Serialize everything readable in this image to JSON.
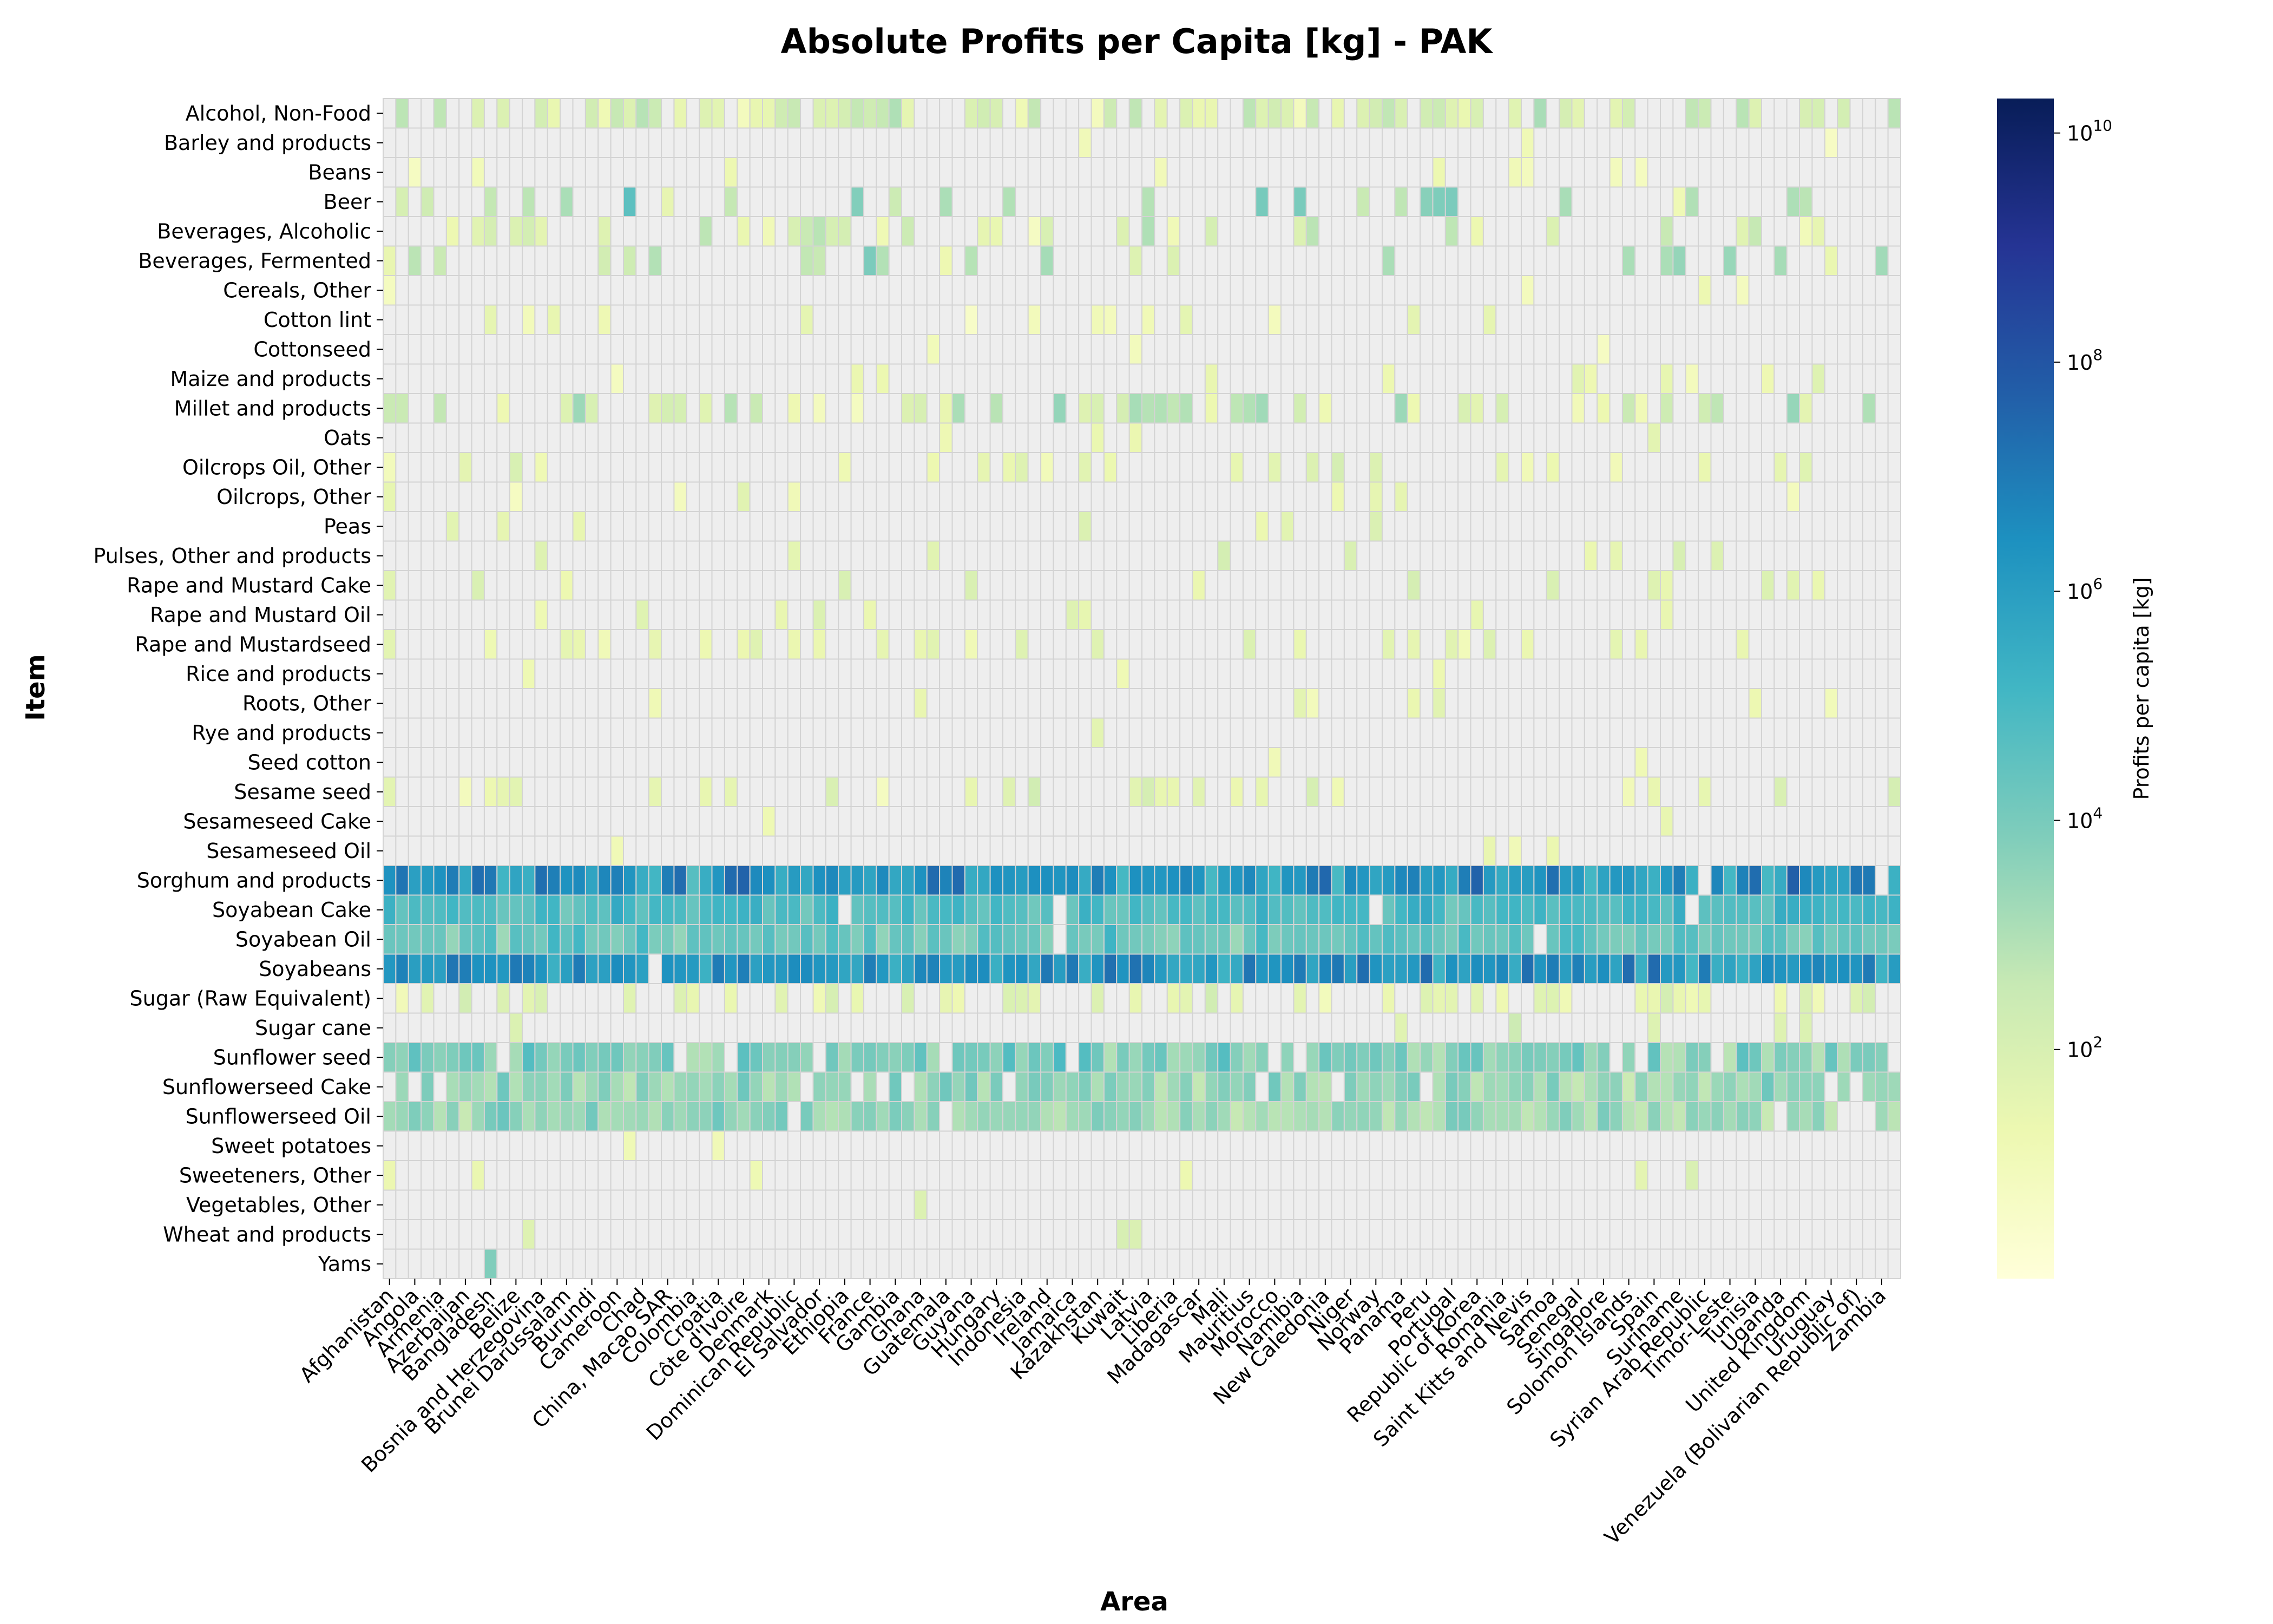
{
  "chart_data": {
    "type": "heatmap",
    "title": "Absolute Profits per Capita [kg] - PAK",
    "xlabel": "Area",
    "ylabel": "Item",
    "colorbar": {
      "label": "Profits per capita [kg]",
      "scale": "log",
      "range": [
        1,
        20000000000
      ],
      "ticks": [
        {
          "label": "10",
          "exp": "10",
          "value": 10000000000
        },
        {
          "label": "10",
          "exp": "8",
          "value": 100000000
        },
        {
          "label": "10",
          "exp": "6",
          "value": 1000000
        },
        {
          "label": "10",
          "exp": "4",
          "value": 10000
        },
        {
          "label": "10",
          "exp": "2",
          "value": 100
        }
      ],
      "colormap": "YlGnBu"
    },
    "missing_color": "#eeeeee",
    "grid_color": "#d3d3d3",
    "y_categories": [
      "Alcohol, Non-Food",
      "Barley and products",
      "Beans",
      "Beer",
      "Beverages, Alcoholic",
      "Beverages, Fermented",
      "Cereals, Other",
      "Cotton lint",
      "Cottonseed",
      "Maize and products",
      "Millet and products",
      "Oats",
      "Oilcrops Oil, Other",
      "Oilcrops, Other",
      "Peas",
      "Pulses, Other and products",
      "Rape and Mustard Cake",
      "Rape and Mustard Oil",
      "Rape and Mustardseed",
      "Rice and products",
      "Roots, Other",
      "Rye and products",
      "Seed cotton",
      "Sesame seed",
      "Sesameseed Cake",
      "Sesameseed Oil",
      "Sorghum and products",
      "Soyabean Cake",
      "Soyabean Oil",
      "Soyabeans",
      "Sugar (Raw Equivalent)",
      "Sugar cane",
      "Sunflower seed",
      "Sunflowerseed Cake",
      "Sunflowerseed Oil",
      "Sweet potatoes",
      "Sweeteners, Other",
      "Vegetables, Other",
      "Wheat and products",
      "Yams"
    ],
    "x_tick_labels": [
      "Afghanistan",
      "Angola",
      "Armenia",
      "Azerbaijan",
      "Bangladesh",
      "Belize",
      "Bosnia and Herzegovina",
      "Brunei Darussalam",
      "Burundi",
      "Cameroon",
      "Chad",
      "China, Macao SAR",
      "Colombia",
      "Croatia",
      "Côte d'Ivoire",
      "Denmark",
      "Dominican Republic",
      "El Salvador",
      "Ethiopia",
      "France",
      "Gambia",
      "Ghana",
      "Guatemala",
      "Guyana",
      "Hungary",
      "Indonesia",
      "Ireland",
      "Jamaica",
      "Kazakhstan",
      "Kuwait",
      "Latvia",
      "Liberia",
      "Madagascar",
      "Mali",
      "Mauritius",
      "Morocco",
      "Namibia",
      "New Caledonia",
      "Niger",
      "Norway",
      "Panama",
      "Peru",
      "Portugal",
      "Republic of Korea",
      "Romania",
      "Saint Kitts and Nevis",
      "Samoa",
      "Senegal",
      "Singapore",
      "Solomon Islands",
      "Spain",
      "Suriname",
      "Syrian Arab Republic",
      "Timor-Leste",
      "Tunisia",
      "Uganda",
      "United Kingdom",
      "Uruguay",
      "Venezuela (Bolivarian Republic of)",
      "Zambia"
    ],
    "n_columns": 120,
    "row_profiles": [
      {
        "density": 0.55,
        "mean_log10": 1.9,
        "spread": 1.4
      },
      {
        "density": 0.03,
        "mean_log10": 1.0,
        "spread": 0.5
      },
      {
        "density": 0.05,
        "mean_log10": 1.0,
        "spread": 0.6
      },
      {
        "density": 0.25,
        "mean_log10": 2.8,
        "spread": 2.0
      },
      {
        "density": 0.2,
        "mean_log10": 2.0,
        "spread": 1.4
      },
      {
        "density": 0.2,
        "mean_log10": 2.6,
        "spread": 1.8
      },
      {
        "density": 0.03,
        "mean_log10": 1.0,
        "spread": 0.5
      },
      {
        "density": 0.08,
        "mean_log10": 1.1,
        "spread": 0.6
      },
      {
        "density": 0.02,
        "mean_log10": 1.0,
        "spread": 0.5
      },
      {
        "density": 0.08,
        "mean_log10": 1.3,
        "spread": 0.6
      },
      {
        "density": 0.45,
        "mean_log10": 2.2,
        "spread": 1.6
      },
      {
        "density": 0.04,
        "mean_log10": 1.3,
        "spread": 0.6
      },
      {
        "density": 0.18,
        "mean_log10": 1.5,
        "spread": 0.8
      },
      {
        "density": 0.07,
        "mean_log10": 1.2,
        "spread": 0.6
      },
      {
        "density": 0.06,
        "mean_log10": 1.6,
        "spread": 0.6
      },
      {
        "density": 0.1,
        "mean_log10": 1.6,
        "spread": 0.7
      },
      {
        "density": 0.1,
        "mean_log10": 1.5,
        "spread": 0.7
      },
      {
        "density": 0.09,
        "mean_log10": 1.5,
        "spread": 0.7
      },
      {
        "density": 0.25,
        "mean_log10": 1.5,
        "spread": 0.8
      },
      {
        "density": 0.02,
        "mean_log10": 1.3,
        "spread": 0.5
      },
      {
        "density": 0.1,
        "mean_log10": 1.3,
        "spread": 0.6
      },
      {
        "density": 0.01,
        "mean_log10": 1.5,
        "spread": 0.4
      },
      {
        "density": 0.01,
        "mean_log10": 1.3,
        "spread": 0.4
      },
      {
        "density": 0.25,
        "mean_log10": 1.5,
        "spread": 0.8
      },
      {
        "density": 0.02,
        "mean_log10": 1.3,
        "spread": 0.5
      },
      {
        "density": 0.02,
        "mean_log10": 1.3,
        "spread": 0.5
      },
      {
        "density": 0.97,
        "mean_log10": 6.2,
        "spread": 1.6
      },
      {
        "density": 0.96,
        "mean_log10": 4.9,
        "spread": 1.0
      },
      {
        "density": 0.96,
        "mean_log10": 4.3,
        "spread": 1.0
      },
      {
        "density": 0.97,
        "mean_log10": 6.3,
        "spread": 1.3
      },
      {
        "density": 0.35,
        "mean_log10": 1.6,
        "spread": 0.8
      },
      {
        "density": 0.02,
        "mean_log10": 2.0,
        "spread": 0.5
      },
      {
        "density": 0.92,
        "mean_log10": 3.8,
        "spread": 1.2
      },
      {
        "density": 0.92,
        "mean_log10": 3.4,
        "spread": 1.0
      },
      {
        "density": 0.92,
        "mean_log10": 3.4,
        "spread": 1.0
      },
      {
        "density": 0.03,
        "mean_log10": 1.0,
        "spread": 0.5
      },
      {
        "density": 0.07,
        "mean_log10": 1.5,
        "spread": 0.6
      },
      {
        "density": 0.02,
        "mean_log10": 1.8,
        "spread": 0.5
      },
      {
        "density": 0.03,
        "mean_log10": 2.2,
        "spread": 0.6
      },
      {
        "density": 0.01,
        "mean_log10": 4.0,
        "spread": 0.3
      }
    ]
  }
}
